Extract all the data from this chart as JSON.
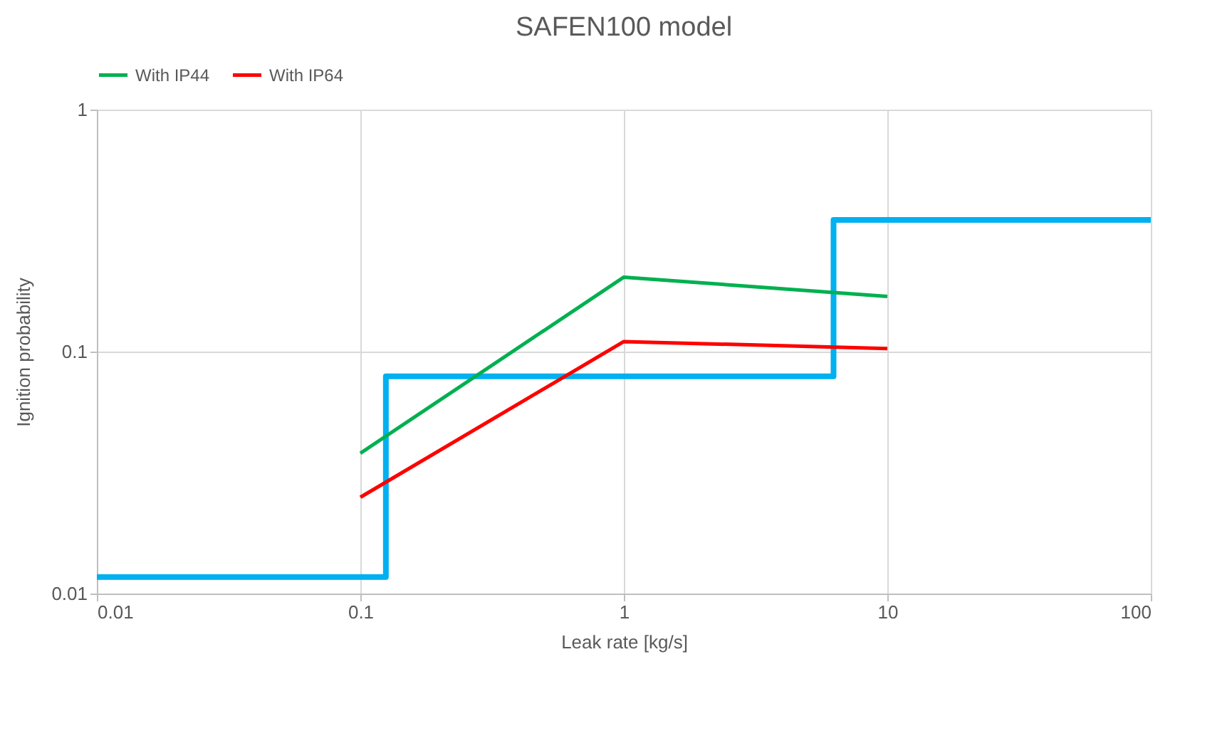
{
  "chart_data": {
    "type": "line",
    "title": "SAFEN100 model",
    "xlabel": "Leak rate [kg/s]",
    "ylabel": "Ignition probability",
    "log": "xy",
    "xlim": [
      0.01,
      100
    ],
    "ylim": [
      0.01,
      1
    ],
    "xticks": [
      0.01,
      0.1,
      1,
      10,
      100
    ],
    "yticks": [
      0.01,
      0.1,
      1
    ],
    "grid": true,
    "legend": "top",
    "series": [
      {
        "type": "step",
        "color": "#00b0f0",
        "x": [
          0.01,
          0.125,
          6.25,
          100
        ],
        "values": [
          0.0117,
          0.079,
          0.35,
          0.35
        ]
      },
      {
        "name": "With IP44",
        "color": "#00b050",
        "x": [
          0.1,
          1,
          10
        ],
        "values": [
          0.038,
          0.203,
          0.169
        ]
      },
      {
        "name": "With IP64",
        "color": "#ff0000",
        "x": [
          0.1,
          1,
          10
        ],
        "values": [
          0.025,
          0.11,
          0.103
        ]
      }
    ]
  }
}
